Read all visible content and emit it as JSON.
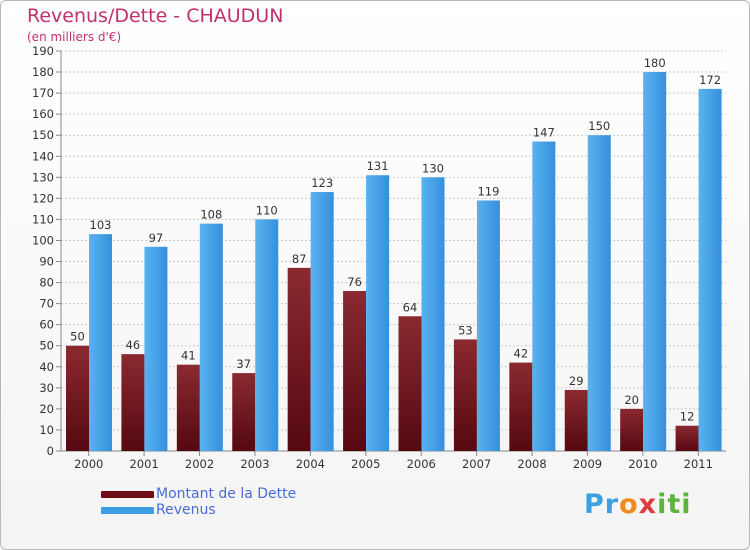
{
  "header": {
    "title": "Revenus/Dette - CHAUDUN",
    "subtitle": "(en milliers d'€)"
  },
  "colors": {
    "dette": "#7a1a1f",
    "revenus": "#3d9ee6",
    "title": "#c0306e",
    "legend_text": "#4a6bd6",
    "grid": "#c8c8c8"
  },
  "chart_data": {
    "type": "bar",
    "title": "Revenus/Dette - CHAUDUN",
    "subtitle": "(en milliers d'€)",
    "categories": [
      "2000",
      "2001",
      "2002",
      "2003",
      "2004",
      "2005",
      "2006",
      "2007",
      "2008",
      "2009",
      "2010",
      "2011"
    ],
    "series": [
      {
        "name": "Montant de la Dette",
        "values": [
          50,
          46,
          41,
          37,
          87,
          76,
          64,
          53,
          42,
          29,
          20,
          12
        ]
      },
      {
        "name": "Revenus",
        "values": [
          103,
          97,
          108,
          110,
          123,
          131,
          130,
          119,
          147,
          150,
          180,
          172
        ]
      }
    ],
    "ylim": [
      0,
      190
    ],
    "ytick_step": 10,
    "grid": true,
    "legend_position": "bottom-left"
  },
  "legend": {
    "items": [
      {
        "label": "Montant de la Dette",
        "color": "#6e0d14"
      },
      {
        "label": "Revenus",
        "color": "#3d9ee6"
      }
    ]
  },
  "logo": {
    "text": "Proxiti",
    "parts": [
      "Pr",
      "o",
      "x",
      "iti"
    ]
  }
}
